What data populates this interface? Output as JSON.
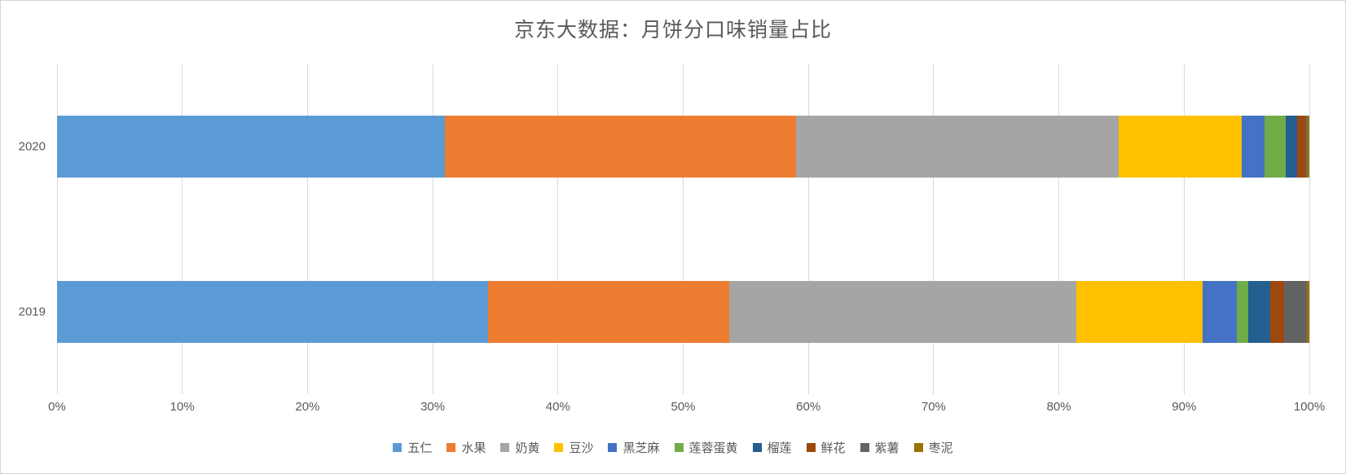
{
  "chart_data": {
    "type": "bar",
    "orientation": "horizontal-stacked",
    "title": "京东大数据：月饼分口味销量占比",
    "xlabel": "",
    "ylabel": "",
    "xlim": [
      0,
      100
    ],
    "grid": "vertical",
    "legend_position": "bottom",
    "background_color": "#ffffff",
    "gridline_color": "#d9d9d9",
    "text_color": "#595959",
    "categories": [
      "2020",
      "2019"
    ],
    "x_tick_labels": [
      "0%",
      "10%",
      "20%",
      "30%",
      "40%",
      "50%",
      "60%",
      "70%",
      "80%",
      "90%",
      "100%"
    ],
    "x_tick_values": [
      0,
      10,
      20,
      30,
      40,
      50,
      60,
      70,
      80,
      90,
      100
    ],
    "series": [
      {
        "name": "五仁",
        "color": "#5B9BD5",
        "values": [
          31.0,
          34.4
        ]
      },
      {
        "name": "水果",
        "color": "#ED7D31",
        "values": [
          28.0,
          19.3
        ]
      },
      {
        "name": "奶黄",
        "color": "#A5A5A5",
        "values": [
          25.8,
          27.7
        ]
      },
      {
        "name": "豆沙",
        "color": "#FFC000",
        "values": [
          9.8,
          10.1
        ]
      },
      {
        "name": "黑芝麻",
        "color": "#4472C4",
        "values": [
          1.8,
          2.7
        ]
      },
      {
        "name": "莲蓉蛋黄",
        "color": "#70AD47",
        "values": [
          1.7,
          0.9
        ]
      },
      {
        "name": "榴莲",
        "color": "#255E91",
        "values": [
          0.9,
          1.8
        ]
      },
      {
        "name": "鲜花",
        "color": "#9E480E",
        "values": [
          0.7,
          1.1
        ]
      },
      {
        "name": "紫薯",
        "color": "#636363",
        "values": [
          0.1,
          1.8
        ]
      },
      {
        "name": "枣泥",
        "color": "#997300",
        "values": [
          0.2,
          0.2
        ]
      }
    ]
  }
}
